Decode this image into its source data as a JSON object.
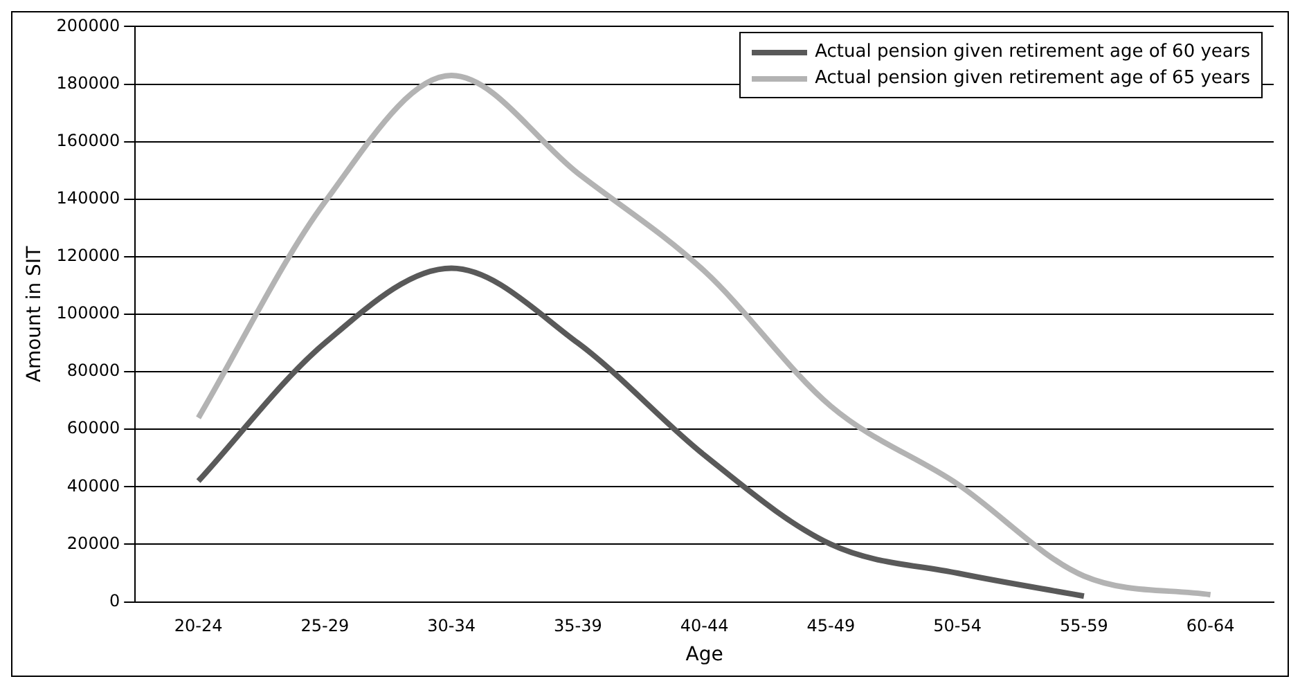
{
  "chart_data": {
    "type": "line",
    "xlabel": "Age",
    "ylabel": "Amount in SIT",
    "categories": [
      "20-24",
      "25-29",
      "30-34",
      "35-39",
      "40-44",
      "45-49",
      "50-54",
      "55-59",
      "60-64"
    ],
    "series": [
      {
        "name": "Actual pension given retirement age of 60 years",
        "color": "#595959",
        "values": [
          42000,
          90000,
          116000,
          90000,
          51000,
          20000,
          10000,
          2000,
          null
        ]
      },
      {
        "name": "Actual pension given retirement age of 65 years",
        "color": "#b3b3b3",
        "values": [
          64000,
          139000,
          183000,
          149000,
          115000,
          68000,
          41000,
          9000,
          2500
        ]
      }
    ],
    "ylim": [
      0,
      200000
    ],
    "yticks": [
      0,
      20000,
      40000,
      60000,
      80000,
      100000,
      120000,
      140000,
      160000,
      180000,
      200000
    ],
    "grid": "y",
    "legend": "top right",
    "marker": "none",
    "line_style": "solid"
  }
}
